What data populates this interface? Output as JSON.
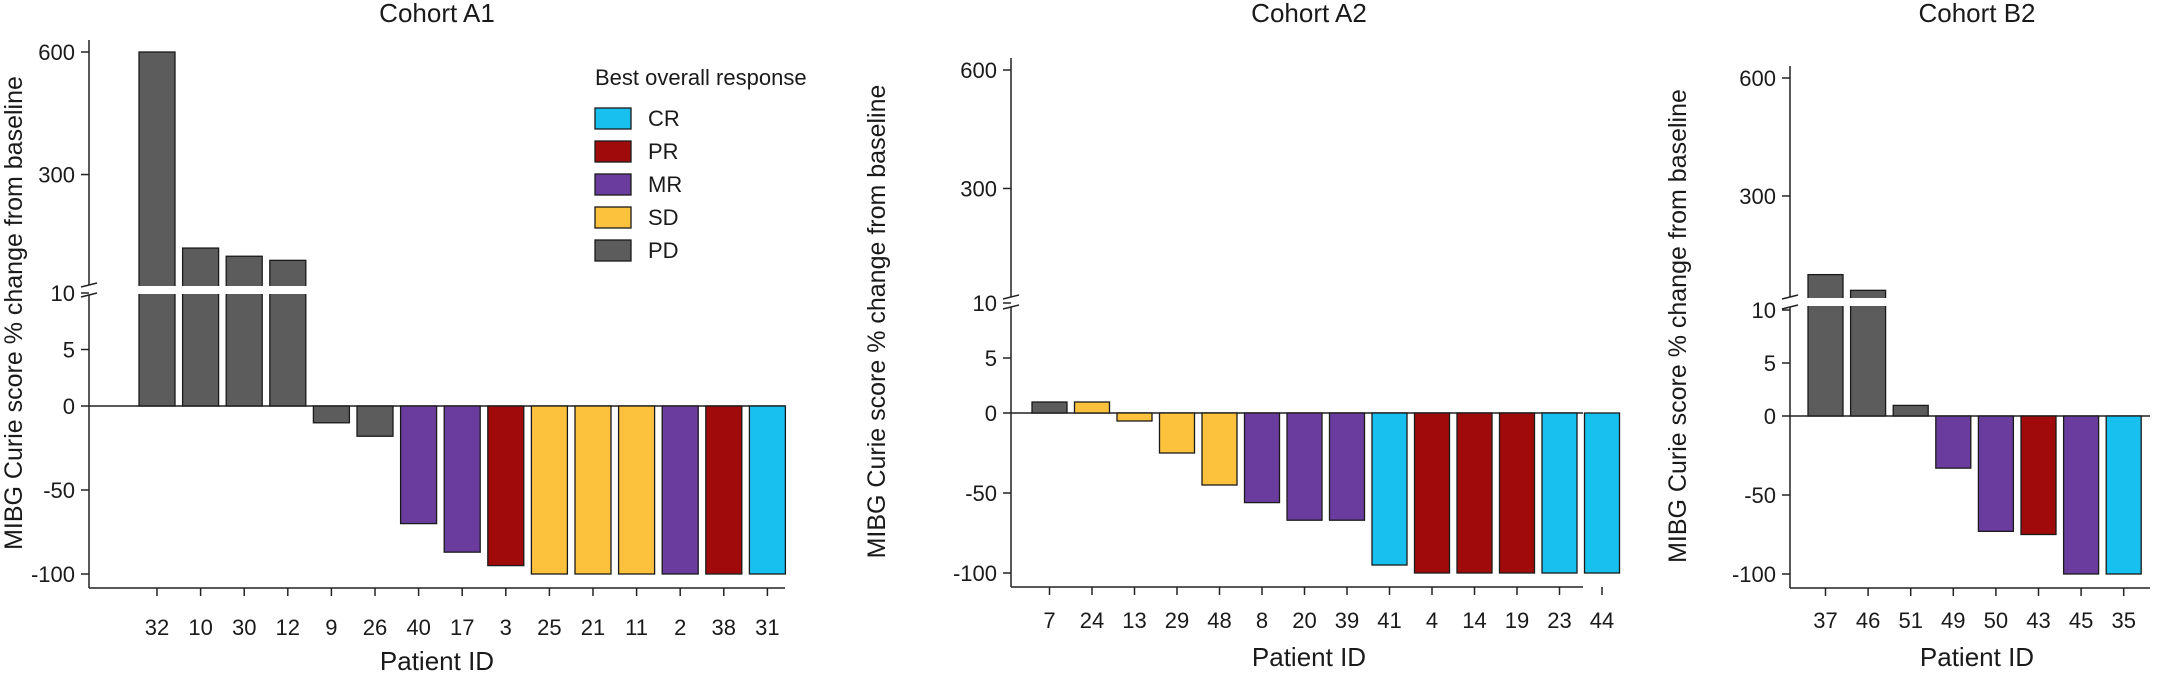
{
  "figure": {
    "ylabel": "MIBG Curie score % change from baseline",
    "xlabel": "Patient ID"
  },
  "legend": {
    "title": "Best overall response",
    "items": [
      {
        "key": "CR",
        "label": "CR",
        "color": "#17c0ef"
      },
      {
        "key": "PR",
        "label": "PR",
        "color": "#a10a0a"
      },
      {
        "key": "MR",
        "label": "MR",
        "color": "#6a3c9e"
      },
      {
        "key": "SD",
        "label": "SD",
        "color": "#fcc13d"
      },
      {
        "key": "PD",
        "label": "PD",
        "color": "#5c5c5c"
      }
    ]
  },
  "chart_data": [
    {
      "type": "bar",
      "title": "Cohort A1",
      "xlabel": "Patient ID",
      "ylabel": "MIBG Curie score % change from baseline",
      "upper_ticks": [
        "600",
        "300"
      ],
      "lower_ticks": [
        "10",
        "5",
        "0",
        "-50",
        "-100"
      ],
      "categories": [
        "32",
        "10",
        "30",
        "12",
        "9",
        "26",
        "40",
        "17",
        "3",
        "25",
        "21",
        "11",
        "2",
        "38",
        "31"
      ],
      "values": [
        600,
        120,
        100,
        90,
        -10,
        -18,
        -70,
        -87,
        -95,
        -100,
        -100,
        -100,
        -100,
        -100,
        -100
      ],
      "response": [
        "PD",
        "PD",
        "PD",
        "PD",
        "PD",
        "PD",
        "MR",
        "MR",
        "PR",
        "SD",
        "SD",
        "SD",
        "MR",
        "PR",
        "CR"
      ]
    },
    {
      "type": "bar",
      "title": "Cohort A2",
      "xlabel": "Patient ID",
      "ylabel": "MIBG Curie score % change from baseline",
      "upper_ticks": [
        "600",
        "300"
      ],
      "lower_ticks": [
        "10",
        "5",
        "0",
        "-50",
        "-100"
      ],
      "categories": [
        "7",
        "24",
        "13",
        "29",
        "48",
        "8",
        "20",
        "39",
        "41",
        "4",
        "14",
        "19",
        "23",
        "44"
      ],
      "values": [
        1,
        1,
        -5,
        -25,
        -45,
        -56,
        -67,
        -67,
        -95,
        -100,
        -100,
        -100,
        -100,
        -100
      ],
      "response": [
        "PD",
        "SD",
        "SD",
        "SD",
        "SD",
        "MR",
        "MR",
        "MR",
        "CR",
        "PR",
        "PR",
        "PR",
        "CR",
        "CR"
      ]
    },
    {
      "type": "bar",
      "title": "Cohort B2",
      "xlabel": "Patient ID",
      "ylabel": "MIBG Curie score % change from baseline",
      "upper_ticks": [
        "600",
        "300"
      ],
      "lower_ticks": [
        "10",
        "5",
        "0",
        "-50",
        "-100"
      ],
      "categories": [
        "37",
        "46",
        "51",
        "49",
        "50",
        "43",
        "45",
        "35"
      ],
      "values": [
        100,
        60,
        1,
        -33,
        -73,
        -75,
        -100,
        -100
      ],
      "response": [
        "PD",
        "PD",
        "PD",
        "MR",
        "MR",
        "PR",
        "MR",
        "CR"
      ]
    }
  ]
}
